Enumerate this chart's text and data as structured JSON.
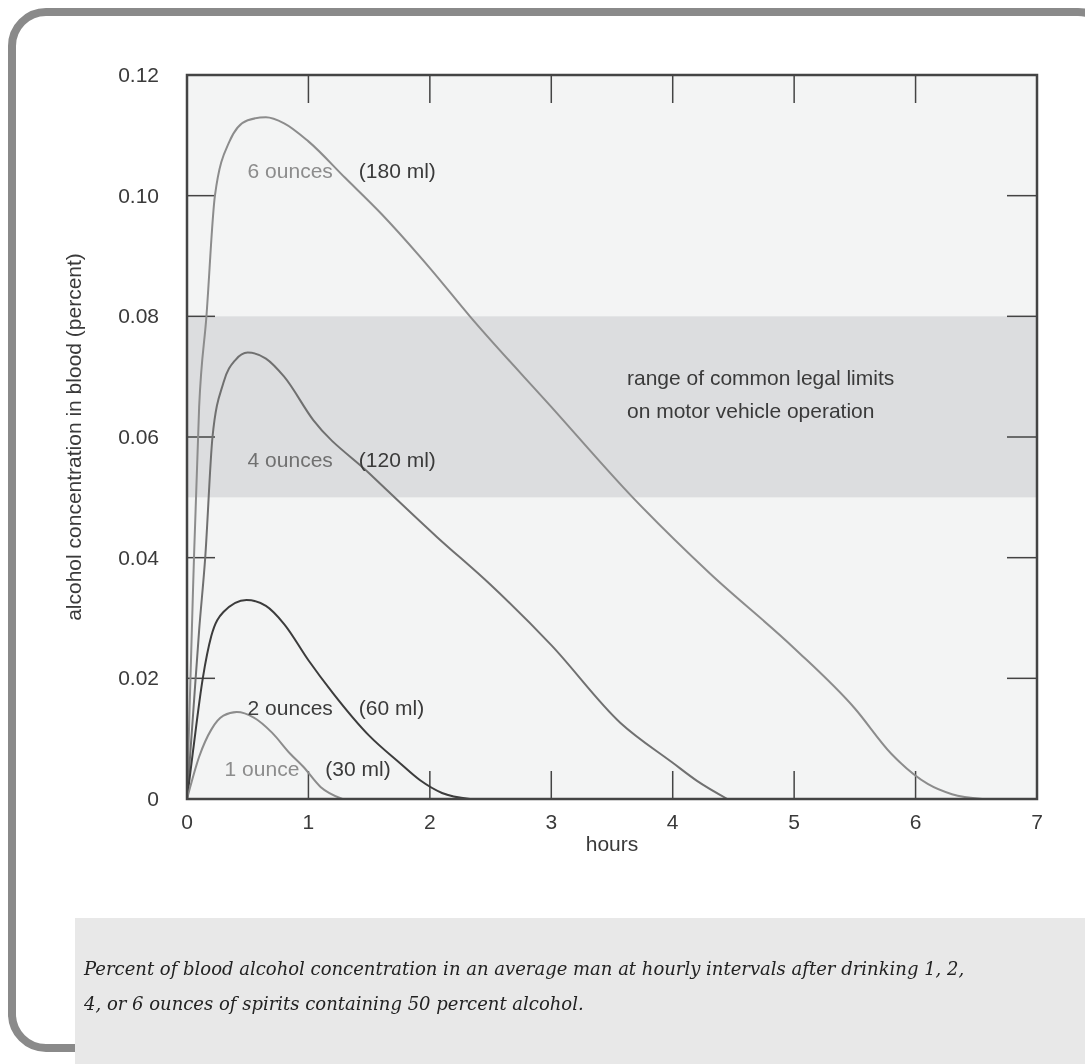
{
  "chart_data": {
    "type": "line",
    "xlabel": "hours",
    "ylabel": "alcohol concentration in blood (percent)",
    "xlim": [
      0,
      7
    ],
    "ylim": [
      0,
      0.12
    ],
    "xticks": [
      0,
      1,
      2,
      3,
      4,
      5,
      6,
      7
    ],
    "yticks": [
      0,
      {
        "value": 0.02,
        "label": "0.02"
      },
      {
        "value": 0.04,
        "label": "0.04"
      },
      {
        "value": 0.06,
        "label": "0.06"
      },
      {
        "value": 0.08,
        "label": "0.08"
      },
      {
        "value": 0.1,
        "label": "0.10"
      },
      {
        "value": 0.12,
        "label": "0.12"
      }
    ],
    "grid": false,
    "legend": false,
    "marker": "none",
    "line_style": "solid",
    "bands": [
      {
        "axis": "y",
        "from": 0.05,
        "to": 0.08,
        "label": "range of common legal limits\non motor vehicle operation",
        "color": "#dcdddf"
      }
    ],
    "series": [
      {
        "name": "6 ounces",
        "color": "#8c8c8c",
        "x": [
          0,
          0.05,
          0.1,
          0.16,
          0.23,
          0.35,
          0.5,
          0.65,
          0.8,
          1.0,
          1.3,
          1.6,
          2.0,
          2.33,
          3.0,
          3.67,
          4.3,
          5.0,
          5.5,
          5.8,
          6.1,
          6.3,
          6.55
        ],
        "values": [
          0,
          0.035,
          0.065,
          0.08,
          0.1,
          0.109,
          0.1125,
          0.113,
          0.112,
          0.109,
          0.103,
          0.097,
          0.088,
          0.08,
          0.065,
          0.05,
          0.0375,
          0.025,
          0.015,
          0.0075,
          0.0025,
          0.0008,
          0
        ]
      },
      {
        "name": "4 ounces",
        "color": "#707070",
        "x": [
          0,
          0.05,
          0.1,
          0.15,
          0.21,
          0.3,
          0.4,
          0.5,
          0.65,
          0.8,
          1.04,
          1.5,
          2.06,
          2.5,
          3.0,
          3.57,
          4.0,
          4.2,
          4.45
        ],
        "values": [
          0,
          0.014,
          0.028,
          0.04,
          0.06,
          0.069,
          0.0728,
          0.074,
          0.073,
          0.07,
          0.0628,
          0.054,
          0.0434,
          0.0355,
          0.0255,
          0.0126,
          0.006,
          0.003,
          0
        ]
      },
      {
        "name": "2 ounces",
        "color": "#3c3c3c",
        "x": [
          0,
          0.05,
          0.13,
          0.2,
          0.3,
          0.49,
          0.65,
          0.8,
          1.0,
          1.2,
          1.5,
          1.75,
          1.92,
          2.1,
          2.33
        ],
        "values": [
          0,
          0.008,
          0.02,
          0.027,
          0.031,
          0.033,
          0.032,
          0.029,
          0.023,
          0.0176,
          0.0105,
          0.006,
          0.0031,
          0.001,
          0
        ]
      },
      {
        "name": "1 ounce",
        "color": "#8c8c8c",
        "x": [
          0,
          0.1,
          0.2,
          0.3,
          0.41,
          0.55,
          0.7,
          0.85,
          0.96,
          1.1,
          1.28
        ],
        "values": [
          0,
          0.007,
          0.0115,
          0.0138,
          0.0144,
          0.0135,
          0.011,
          0.0075,
          0.0053,
          0.002,
          0
        ]
      }
    ],
    "annotations": [
      "(180 ml)",
      "(120 ml)",
      "(60 ml)",
      "(30 ml)",
      "Percent of blood alcohol concentration in an average man at hourly intervals after drinking 1, 2, 4, or 6 ounces of spirits containing 50 percent alcohol."
    ]
  }
}
